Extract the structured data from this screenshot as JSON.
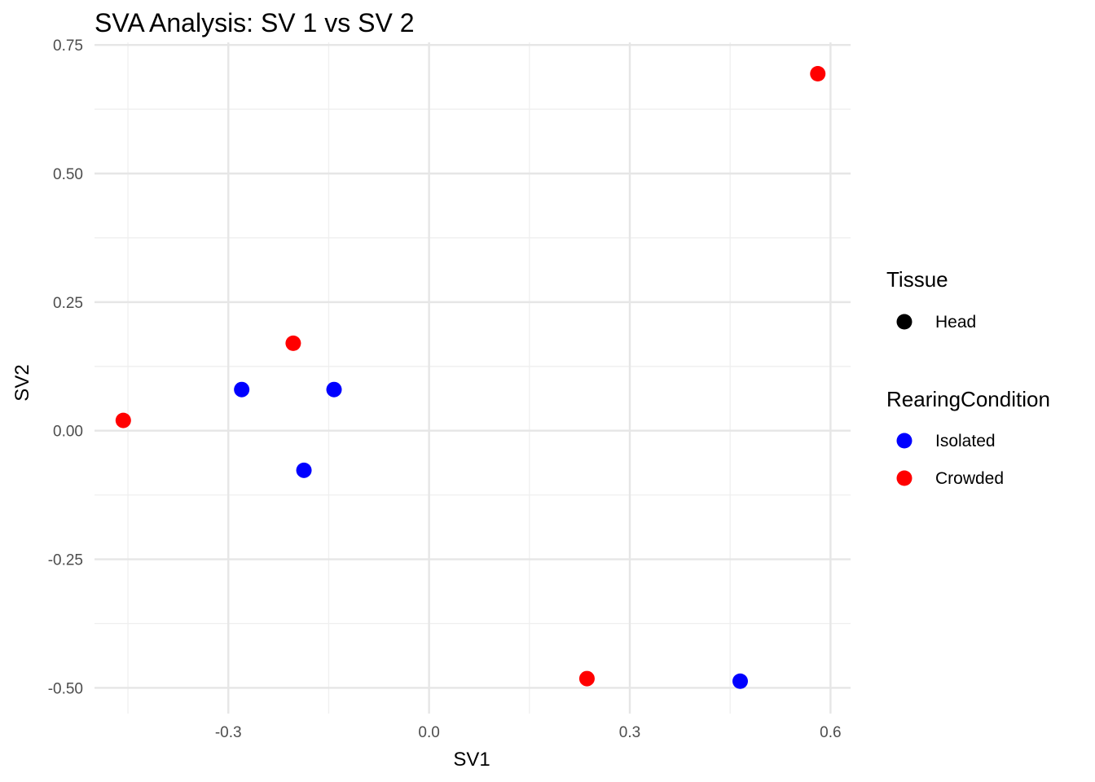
{
  "chart_data": {
    "type": "scatter",
    "title": "SVA Analysis: SV 1  vs SV 2",
    "xlabel": "SV1",
    "ylabel": "SV2",
    "xlim": [
      -0.5,
      0.63
    ],
    "ylim": [
      -0.55,
      0.755
    ],
    "x_ticks": [
      -0.3,
      0.0,
      0.3,
      0.6
    ],
    "x_tick_labels": [
      "-0.3",
      "0.0",
      "0.3",
      "0.6"
    ],
    "y_ticks": [
      -0.5,
      -0.25,
      0.0,
      0.25,
      0.5,
      0.75
    ],
    "y_tick_labels": [
      "-0.50",
      "-0.25",
      "0.00",
      "0.25",
      "0.50",
      "0.75"
    ],
    "grid": true,
    "legend_position": "right",
    "colors": {
      "Isolated": "#0000ff",
      "Crowded": "#ff0000",
      "Head": "#000000"
    },
    "series": [
      {
        "name": "Isolated",
        "points": [
          [
            -0.28,
            0.08
          ],
          [
            -0.142,
            0.08
          ],
          [
            -0.187,
            -0.077
          ],
          [
            0.465,
            -0.487
          ]
        ]
      },
      {
        "name": "Crowded",
        "points": [
          [
            -0.457,
            0.02
          ],
          [
            -0.203,
            0.17
          ],
          [
            0.236,
            -0.482
          ],
          [
            0.581,
            0.694
          ]
        ]
      }
    ],
    "legend": {
      "groups": [
        {
          "title": "Tissue",
          "entries": [
            {
              "label": "Head",
              "color": "#000000"
            }
          ]
        },
        {
          "title": "RearingCondition",
          "entries": [
            {
              "label": "Isolated",
              "color": "#0000ff"
            },
            {
              "label": "Crowded",
              "color": "#ff0000"
            }
          ]
        }
      ]
    }
  }
}
